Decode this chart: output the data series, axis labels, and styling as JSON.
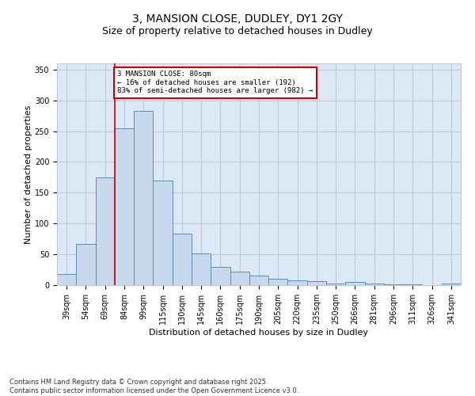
{
  "title": "3, MANSION CLOSE, DUDLEY, DY1 2GY",
  "subtitle": "Size of property relative to detached houses in Dudley",
  "xlabel": "Distribution of detached houses by size in Dudley",
  "ylabel": "Number of detached properties",
  "categories": [
    "39sqm",
    "54sqm",
    "69sqm",
    "84sqm",
    "99sqm",
    "115sqm",
    "130sqm",
    "145sqm",
    "160sqm",
    "175sqm",
    "190sqm",
    "205sqm",
    "220sqm",
    "235sqm",
    "250sqm",
    "266sqm",
    "281sqm",
    "296sqm",
    "311sqm",
    "326sqm",
    "341sqm"
  ],
  "values": [
    18,
    67,
    175,
    255,
    283,
    170,
    84,
    52,
    29,
    22,
    15,
    10,
    8,
    6,
    3,
    5,
    2,
    1,
    1,
    0,
    2
  ],
  "bar_color": "#c8d9ed",
  "bar_edge_color": "#5b8db8",
  "grid_color": "#c0c8d8",
  "background_color": "#dce8f5",
  "annotation_box_text": "3 MANSION CLOSE: 80sqm\n← 16% of detached houses are smaller (192)\n83% of semi-detached houses are larger (982) →",
  "annotation_box_color": "#cc0000",
  "vline_color": "#cc0000",
  "ylim": [
    0,
    360
  ],
  "yticks": [
    0,
    50,
    100,
    150,
    200,
    250,
    300,
    350
  ],
  "footer": "Contains HM Land Registry data © Crown copyright and database right 2025.\nContains public sector information licensed under the Open Government Licence v3.0.",
  "title_fontsize": 10,
  "subtitle_fontsize": 9,
  "label_fontsize": 8,
  "tick_fontsize": 7,
  "footer_fontsize": 6
}
